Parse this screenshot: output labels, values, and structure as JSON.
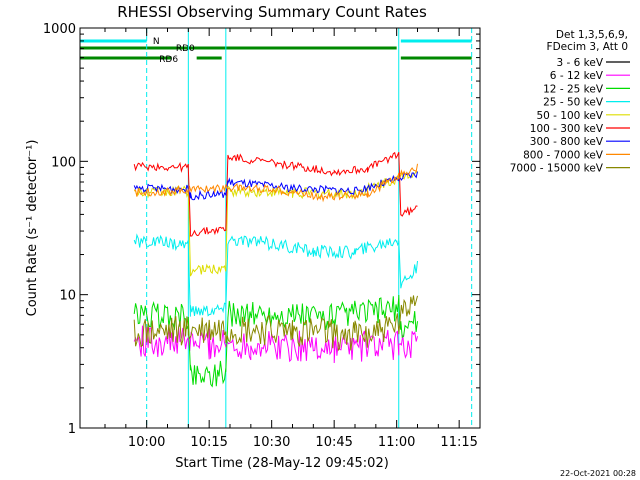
{
  "chart_data": {
    "type": "line",
    "title": "RHESSI Observing Summary Count Rates",
    "xlabel": "Start Time (28-May-12 09:45:02)",
    "ylabel": "Count Rate (s⁻¹ detector⁻¹)",
    "y_scale": "log",
    "ylim": [
      1,
      1000
    ],
    "xlim_minutes": [
      -1,
      95
    ],
    "x_ticks": [
      {
        "label": "10:00",
        "minute": 15
      },
      {
        "label": "10:15",
        "minute": 30
      },
      {
        "label": "10:30",
        "minute": 45
      },
      {
        "label": "10:45",
        "minute": 60
      },
      {
        "label": "11:00",
        "minute": 75
      },
      {
        "label": "11:15",
        "minute": 90
      }
    ],
    "y_ticks": [
      {
        "label": "1",
        "value": 1
      },
      {
        "label": "10",
        "value": 10
      },
      {
        "label": "100",
        "value": 100
      },
      {
        "label": "1000",
        "value": 1000
      }
    ],
    "legend": {
      "header": [
        "Det 1,3,5,6,9,",
        "FDecim 3, Att 0"
      ],
      "placement": "right"
    },
    "series": [
      {
        "name": "3 - 6 keV",
        "color": "#000000",
        "values": [
          {
            "t": 12.0,
            "v": 1.0
          },
          {
            "t": 25.5,
            "v": 1.0
          },
          {
            "t": 30.0,
            "v": 1.0
          },
          {
            "t": 33.0,
            "v": 1.0
          },
          {
            "t": 76.0,
            "v": 1.0
          },
          {
            "t": 80.0,
            "v": 1.0
          }
        ]
      },
      {
        "name": "6 - 12 keV",
        "color": "#ff00ff",
        "values": [
          {
            "t": 12.0,
            "v": 4.5
          },
          {
            "t": 25.0,
            "v": 4.4
          },
          {
            "t": 30.0,
            "v": 4.3
          },
          {
            "t": 40.0,
            "v": 4.2
          },
          {
            "t": 60.0,
            "v": 4.0
          },
          {
            "t": 75.5,
            "v": 4.2
          },
          {
            "t": 80.0,
            "v": 4.5
          }
        ]
      },
      {
        "name": "12 - 25 keV",
        "color": "#00dd00",
        "values": [
          {
            "t": 12.0,
            "v": 7.0
          },
          {
            "t": 25.0,
            "v": 6.8
          },
          {
            "t": 25.5,
            "v": 2.5
          },
          {
            "t": 34.0,
            "v": 2.6
          },
          {
            "t": 34.5,
            "v": 7.2
          },
          {
            "t": 60.0,
            "v": 6.8
          },
          {
            "t": 75.5,
            "v": 8.0
          },
          {
            "t": 76.0,
            "v": 5.5
          },
          {
            "t": 80.0,
            "v": 6.5
          }
        ]
      },
      {
        "name": "25 - 50 keV",
        "color": "#00eeee",
        "values": [
          {
            "t": 12.0,
            "v": 25.0
          },
          {
            "t": 25.0,
            "v": 24.0
          },
          {
            "t": 25.5,
            "v": 7.5
          },
          {
            "t": 34.0,
            "v": 7.8
          },
          {
            "t": 34.5,
            "v": 26.0
          },
          {
            "t": 45.0,
            "v": 24.0
          },
          {
            "t": 55.0,
            "v": 21.0
          },
          {
            "t": 65.0,
            "v": 21.0
          },
          {
            "t": 75.0,
            "v": 26.0
          },
          {
            "t": 75.5,
            "v": 26.5
          },
          {
            "t": 76.0,
            "v": 12.0
          },
          {
            "t": 80.0,
            "v": 16.0
          }
        ]
      },
      {
        "name": "50 - 100 keV",
        "color": "#dddd00",
        "values": [
          {
            "t": 12.0,
            "v": 58.0
          },
          {
            "t": 25.0,
            "v": 60.0
          },
          {
            "t": 25.5,
            "v": 15.0
          },
          {
            "t": 34.0,
            "v": 16.0
          },
          {
            "t": 34.5,
            "v": 60.0
          },
          {
            "t": 50.0,
            "v": 58.0
          },
          {
            "t": 65.0,
            "v": 57.0
          },
          {
            "t": 75.5,
            "v": 75.0
          },
          {
            "t": 80.0,
            "v": 85.0
          }
        ]
      },
      {
        "name": "100 - 300 keV",
        "color": "#ff0000",
        "values": [
          {
            "t": 12.0,
            "v": 92.0
          },
          {
            "t": 25.0,
            "v": 90.0
          },
          {
            "t": 25.5,
            "v": 29.0
          },
          {
            "t": 34.0,
            "v": 31.0
          },
          {
            "t": 34.5,
            "v": 108.0
          },
          {
            "t": 48.0,
            "v": 95.0
          },
          {
            "t": 60.0,
            "v": 83.0
          },
          {
            "t": 68.0,
            "v": 88.0
          },
          {
            "t": 75.5,
            "v": 115.0
          },
          {
            "t": 76.0,
            "v": 40.0
          },
          {
            "t": 80.0,
            "v": 44.0
          }
        ]
      },
      {
        "name": "300 - 800 keV",
        "color": "#0000ff",
        "values": [
          {
            "t": 12.0,
            "v": 63.0
          },
          {
            "t": 25.0,
            "v": 62.0
          },
          {
            "t": 25.5,
            "v": 55.0
          },
          {
            "t": 34.0,
            "v": 57.0
          },
          {
            "t": 34.5,
            "v": 70.0
          },
          {
            "t": 50.0,
            "v": 63.0
          },
          {
            "t": 65.0,
            "v": 60.0
          },
          {
            "t": 75.5,
            "v": 74.0
          },
          {
            "t": 80.0,
            "v": 80.0
          }
        ]
      },
      {
        "name": "800 - 7000 keV",
        "color": "#ff8800",
        "values": [
          {
            "t": 12.0,
            "v": 58.0
          },
          {
            "t": 25.0,
            "v": 61.0
          },
          {
            "t": 34.0,
            "v": 64.0
          },
          {
            "t": 45.0,
            "v": 62.0
          },
          {
            "t": 58.0,
            "v": 54.0
          },
          {
            "t": 68.0,
            "v": 57.0
          },
          {
            "t": 75.5,
            "v": 78.0
          },
          {
            "t": 80.0,
            "v": 90.0
          }
        ]
      },
      {
        "name": "7000 - 15000 keV",
        "color": "#888800",
        "values": [
          {
            "t": 12.0,
            "v": 5.0
          },
          {
            "t": 25.0,
            "v": 5.3
          },
          {
            "t": 34.0,
            "v": 5.5
          },
          {
            "t": 50.0,
            "v": 5.2
          },
          {
            "t": 65.0,
            "v": 5.0
          },
          {
            "t": 75.5,
            "v": 5.8
          },
          {
            "t": 80.0,
            "v": 11.0
          }
        ]
      }
    ],
    "annotations": {
      "flags": [
        {
          "label": "N",
          "color": "#00eeee",
          "segments": [
            [
              -1,
              15
            ],
            [
              76,
              93
            ]
          ]
        },
        {
          "label": "RD0",
          "color": "#008800",
          "segments": [
            [
              -1,
              75
            ]
          ]
        },
        {
          "label": "RD6",
          "color": "#008800",
          "segments": [
            [
              -1,
              21
            ],
            [
              27,
              33
            ],
            [
              76,
              93
            ]
          ]
        }
      ],
      "vertical_lines": [
        {
          "minute": -1,
          "style": "solid",
          "color": "#00eeee"
        },
        {
          "minute": 15,
          "style": "dashed",
          "color": "#00eeee"
        },
        {
          "minute": 25,
          "style": "solid",
          "color": "#00eeee"
        },
        {
          "minute": 34,
          "style": "solid",
          "color": "#00eeee"
        },
        {
          "minute": 75.5,
          "style": "solid",
          "color": "#00eeee"
        },
        {
          "minute": 93,
          "style": "dashed",
          "color": "#00eeee"
        }
      ]
    },
    "footer_date": "22-Oct-2021 00:28"
  }
}
